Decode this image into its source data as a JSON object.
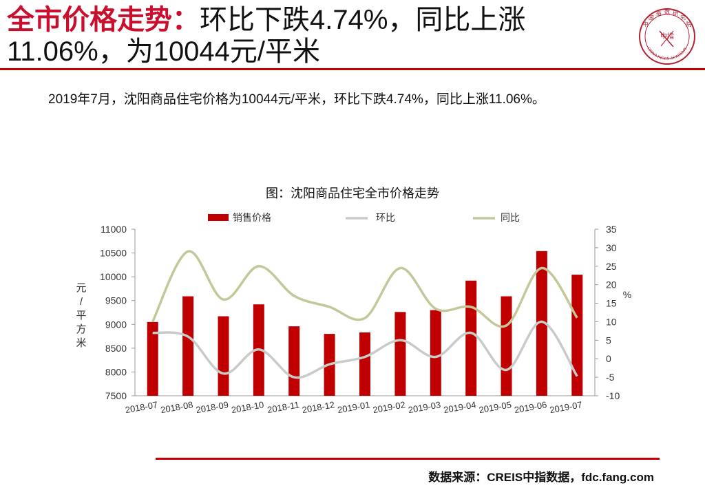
{
  "header": {
    "title_accent": "全市价格走势：",
    "title_rest": "环比下跌4.74%，同比上涨11.06%，为10044元/平米"
  },
  "logo": {
    "name": "china-index-academy-seal",
    "top_chars": "中国指数研究院",
    "center_chars": "中指",
    "bottom_text": "CHINA INDEX ACADEMY"
  },
  "summary": "2019年7月，沈阳商品住宅价格为10044元/平米，环比下跌4.74%，同比上涨11.06%。",
  "source": "数据来源：CREIS中指数据，fdc.fang.com",
  "colors": {
    "brand_red": "#c00000",
    "bar": "#c00000",
    "mom_line": "#c8ccc8",
    "yoy_line": "#c4c79a"
  },
  "chart_data": {
    "type": "bar",
    "title": "图：沈阳商品住宅全市价格走势",
    "categories": [
      "2018-07",
      "2018-08",
      "2018-09",
      "2018-10",
      "2018-11",
      "2018-12",
      "2019-01",
      "2019-02",
      "2019-03",
      "2019-04",
      "2019-05",
      "2019-06",
      "2019-07"
    ],
    "series": [
      {
        "name": "销售价格",
        "type": "bar",
        "axis": "left",
        "values": [
          9050,
          9590,
          9170,
          9420,
          8960,
          8800,
          8830,
          9260,
          9300,
          9920,
          9590,
          10540,
          10044
        ]
      },
      {
        "name": "环比",
        "type": "line",
        "axis": "right",
        "values": [
          7,
          6,
          -4,
          2.5,
          -5,
          -1.5,
          0.5,
          5,
          0.5,
          7,
          -3,
          10,
          -4.74
        ]
      },
      {
        "name": "同比",
        "type": "line",
        "axis": "right",
        "values": [
          10,
          29,
          16,
          25,
          17,
          14,
          11,
          24.5,
          13.5,
          14,
          9,
          24.5,
          11.06
        ]
      }
    ],
    "ylabel": "元/平方米",
    "y2label": "%",
    "ylim": [
      7500,
      11000
    ],
    "yticks": [
      7500,
      8000,
      8500,
      9000,
      9500,
      10000,
      10500,
      11000
    ],
    "y2lim": [
      -10,
      35
    ],
    "y2ticks": [
      -10,
      -5,
      0,
      5,
      10,
      15,
      20,
      25,
      30,
      35
    ],
    "legend": "top",
    "grid": false
  }
}
